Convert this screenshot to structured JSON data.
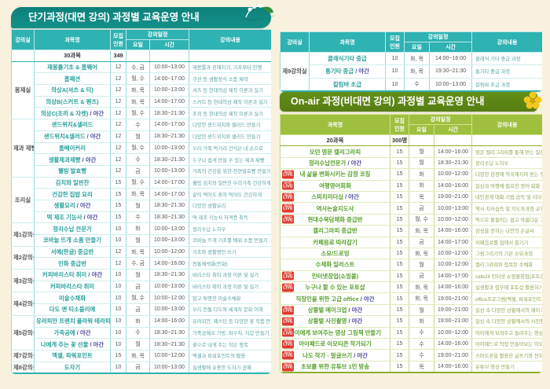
{
  "colors": {
    "background": "#f8f1dd",
    "teal_banner": "#0e807c",
    "teal_header": "#2fb2b2",
    "teal_subject": "#27a09a",
    "green_banner": "#5e8c17",
    "green_header": "#9fc03e",
    "green_subject": "#55a02a",
    "night_text": "#4c4c9e",
    "live_red": "#e23b2e"
  },
  "headers": {
    "room": "강의실",
    "subject": "과목명",
    "cap1": "모집",
    "cap2": "인원",
    "schedule": "강의일정",
    "day": "요일",
    "time": "시간",
    "content": "강의내용"
  },
  "night_suffix": " / 야간",
  "live_badge": {
    "line1": "실시간",
    "line2": "LIVE"
  },
  "left_table": {
    "title": "단기과정(대면 강의) 과정별 교육운영 안내",
    "summary": {
      "subject": "30과목",
      "capacity": "349"
    },
    "groups": [
      {
        "room": "봉제실",
        "rows": [
          {
            "subject": "재봉틀기초 & 홈웨어",
            "night": false,
            "capacity": "12",
            "day": "수, 금",
            "time": "10:00~13:00",
            "content": "재봉틀과 친해지기, 기초부터 진행"
          },
          {
            "subject": "홈패션",
            "night": false,
            "capacity": "12",
            "day": "월, 수",
            "time": "14:00~17:00",
            "content": "쿠션 등 생활장식 소품 제작"
          },
          {
            "subject": "의상A(셔츠 & 티)",
            "night": false,
            "capacity": "12",
            "day": "화, 목",
            "time": "10:00~13:00",
            "content": "셔츠 등 현대의상 제작 이론과 실기"
          },
          {
            "subject": "의상B(스커트 & 팬츠)",
            "night": false,
            "capacity": "12",
            "day": "화, 목",
            "time": "14:00~17:00",
            "content": "스커트 등 현대의상 제작 이론과 실기"
          },
          {
            "subject": "의상C(조끼 & 자켓)",
            "night": true,
            "capacity": "12",
            "day": "월, 수",
            "time": "18:30~21:30",
            "content": "조끼 등 현대의상 제작 이론과 실기"
          }
        ]
      },
      {
        "room": "제과 제빵실",
        "rows": [
          {
            "subject": "샌드위치&샐러드",
            "night": false,
            "capacity": "12",
            "day": "수",
            "time": "14:00~17:00",
            "content": "다양한 샌드위치와 샐러드 만들기"
          },
          {
            "subject": "샌드위치&샐러드",
            "night": true,
            "capacity": "12",
            "day": "월",
            "time": "18:30~21:30",
            "content": "다양한 샌드위치와 샐러드 만들기"
          },
          {
            "subject": "홈베이커리",
            "night": false,
            "capacity": "12",
            "day": "월, 수",
            "time": "10:00~13:00",
            "content": "우리 가족 먹거리 간식은 내 손으로"
          },
          {
            "subject": "생활제과제빵",
            "night": true,
            "capacity": "12",
            "day": "수",
            "time": "18:30~21:30",
            "content": "누구나 쉽게 만들 수 있는 제과 제빵"
          },
          {
            "subject": "웰빙 발효빵",
            "night": false,
            "capacity": "12",
            "day": "금",
            "time": "10:00~13:00",
            "content": "가족의 건강을 위한 천연발효빵 만들기"
          }
        ]
      },
      {
        "room": "조리실",
        "rows": [
          {
            "subject": "김치와 일반찬",
            "night": false,
            "capacity": "15",
            "day": "월, 수",
            "time": "14:00~17:00",
            "content": "웰빙 김치와 일반찬 우리가족 건강하게"
          },
          {
            "subject": "건강한 집밥 요리",
            "night": false,
            "capacity": "15",
            "day": "화, 목",
            "time": "14:00~17:00",
            "content": "같이 먹어도 혼자 먹어도 건강하게"
          },
          {
            "subject": "생활요리",
            "night": true,
            "capacity": "15",
            "day": "월",
            "time": "18:30~21:30",
            "content": "다양한 생활요리"
          },
          {
            "subject": "떡 제조 기능사",
            "night": true,
            "capacity": "15",
            "day": "수",
            "time": "18:30~21:30",
            "content": "떡 제조 기능사 자격증 취득"
          }
        ]
      },
      {
        "room": "제1강의실",
        "rows": [
          {
            "subject": "정리수납 전문가",
            "night": false,
            "capacity": "10",
            "day": "화",
            "time": "10:00~13:00",
            "content": "정리수납 노하우"
          },
          {
            "subject": "코바늘 뜨개 소품 만들기",
            "night": false,
            "capacity": "10",
            "day": "월",
            "time": "10:00~13:00",
            "content": "코바늘 뜨개 기초를 배워 소품 만들기"
          }
        ]
      },
      {
        "room": "제2강의실",
        "rows": [
          {
            "subject": "서예(한글) 중급반",
            "night": false,
            "capacity": "12",
            "day": "화, 목",
            "time": "10:00~12:00",
            "content": "기초와 생활명언 쓰기"
          },
          {
            "subject": "민화 중급반",
            "night": false,
            "capacity": "12",
            "day": "수, 금",
            "time": "14:00~16:00",
            "content": "전통채색화(민화)"
          }
        ]
      },
      {
        "room": "제3강의실",
        "rows": [
          {
            "subject": "커피바리스타 취미",
            "night": true,
            "capacity": "10",
            "day": "월",
            "time": "18:30~21:30",
            "content": "바리스타 취미 과정 이론 및 실기"
          },
          {
            "subject": "커피바리스타 취미",
            "night": false,
            "capacity": "10",
            "day": "금",
            "time": "10:00~13:00",
            "content": "바리스타 취미 과정 이론 및 실기"
          }
        ]
      },
      {
        "room": "제4강의실",
        "rows": [
          {
            "subject": "미술수채화",
            "night": false,
            "capacity": "10",
            "day": "월, 수",
            "time": "10:00~12:00",
            "content": "맑고 투명한 미술수채화"
          },
          {
            "subject": "다도 앤 티소믈리에",
            "night": false,
            "capacity": "10",
            "day": "금",
            "time": "10:00~13:00",
            "content": "우리 전통 다도와 세계차 문화 이해"
          }
        ]
      },
      {
        "room": "제5강의실",
        "rows": [
          {
            "subject": "유러피안 프렌치 플라워 테라피",
            "night": false,
            "capacity": "10",
            "day": "화",
            "time": "14:00~16:00",
            "content": "유러피안, 웨스턴 등 다양한 꽃 작품 만들기"
          },
          {
            "subject": "가죽공예",
            "night": true,
            "capacity": "10",
            "day": "수",
            "time": "18:30~21:30",
            "content": "가죽공예로 가방, 파우치, 지갑 만들기"
          },
          {
            "subject": "나에게 주는 꽃 선물",
            "night": true,
            "capacity": "10",
            "day": "월",
            "time": "18:30~21:30",
            "content": "꽃으로 내게 주는 작은 행복"
          }
        ]
      },
      {
        "room": "제7강의실",
        "rows": [
          {
            "subject": "엑셀, 파워포인트",
            "night": false,
            "capacity": "15",
            "day": "화, 목",
            "time": "10:00~12:00",
            "content": "엑셀과 파워포인트의 활용"
          }
        ]
      },
      {
        "room": "제8강의실",
        "rows": [
          {
            "subject": "도자기",
            "night": false,
            "capacity": "10",
            "day": "금",
            "time": "10:00~13:00",
            "content": "실생활에 유용한 도자기 공예"
          }
        ]
      }
    ]
  },
  "right_table": {
    "groups": [
      {
        "room": "제9강의실",
        "rows": [
          {
            "subject": "클래식기타 중급",
            "night": false,
            "capacity": "10",
            "day": "화, 목",
            "time": "14:00~16:00",
            "content": "클래식 기타 중급 과정"
          },
          {
            "subject": "통기타 중급",
            "night": true,
            "capacity": "10",
            "day": "화, 목",
            "time": "19:30~21:30",
            "content": "통기타 중급 과정"
          },
          {
            "subject": "칼림바 초급",
            "night": false,
            "capacity": "10",
            "day": "수",
            "time": "10:00~13:00",
            "content": "칼림바 초급 과정"
          }
        ]
      }
    ]
  },
  "onair_table": {
    "title": "On-air 과정(비대면 강의) 과정별 교육운영 안내",
    "summary": {
      "subject": "20과목",
      "capacity": "300명"
    },
    "rows": [
      {
        "live": false,
        "subject": "모던 영문 캘리그라피",
        "night": false,
        "capacity": "15",
        "day": "월",
        "time": "14:00~16:00",
        "content": "영문 캘리그라피를 통해 얻는 일상"
      },
      {
        "live": false,
        "subject": "정리수납전문가",
        "night": true,
        "capacity": "15",
        "day": "월",
        "time": "18:30~21:30",
        "content": "정리수납 노하우"
      },
      {
        "live": true,
        "subject": "내 삶을 변화시키는 감정 코칭",
        "night": false,
        "capacity": "15",
        "day": "화",
        "time": "10:00~12:00",
        "content": "다양한 감정에 익숙해지며 얻는 행복"
      },
      {
        "live": true,
        "subject": "여행영어회화",
        "night": false,
        "capacity": "15",
        "day": "화",
        "time": "14:00~16:00",
        "content": "일상과 여행에 필요한 영어 회화"
      },
      {
        "live": true,
        "subject": "스피치리더십",
        "night": true,
        "capacity": "15",
        "day": "목",
        "time": "19:00~21:00",
        "content": "대인관계 대화 기법 습득 및 리더십 향상"
      },
      {
        "live": true,
        "subject": "역사논술지도사",
        "night": false,
        "capacity": "15",
        "day": "금",
        "time": "10:00~13:00",
        "content": "역사 지식습득 및 지도자과정 교육"
      },
      {
        "live": true,
        "subject": "현대수묵담채화 중급반",
        "night": false,
        "capacity": "15",
        "day": "월, 수",
        "time": "10:00~12:00",
        "content": "먹으로 물들이는 쉽고 아름다운 그림"
      },
      {
        "live": false,
        "subject": "캘리그라피 중급반",
        "night": false,
        "capacity": "15",
        "day": "화, 목",
        "time": "14:00~16:00",
        "content": "감성을 전하는 나만의 손글씨"
      },
      {
        "live": false,
        "subject": "카페음료 따라잡기",
        "night": false,
        "capacity": "15",
        "day": "금",
        "time": "14:00~17:00",
        "content": "카페음료를 집에서 즐기기"
      },
      {
        "live": false,
        "subject": "소묘/드로잉",
        "night": false,
        "capacity": "15",
        "day": "화, 목",
        "time": "10:00~12:00",
        "content": "그림그리기의 기본 소묘과정"
      },
      {
        "live": false,
        "subject": "수채화 일러스트",
        "night": false,
        "capacity": "15",
        "day": "월",
        "time": "10:00~12:00",
        "content": "캘리그라피와 접목된 수채화"
      },
      {
        "live": true,
        "subject": "인터넷창업(쇼핑몰)",
        "night": false,
        "capacity": "15",
        "day": "금",
        "time": "14:00~17:00",
        "content": "cafe24 인터넷 쇼핑몰창업(포토샵가능자)"
      },
      {
        "live": true,
        "subject": "누구나 할 수 있는 포토샵",
        "night": false,
        "capacity": "15",
        "day": "화, 목",
        "time": "14:00~16:00",
        "content": "실생활과 업무에 포토샵 활용하기"
      },
      {
        "live": false,
        "subject": "직장인을 위한 고급 office",
        "night": true,
        "capacity": "15",
        "day": "화, 목",
        "time": "19:00~21:00",
        "content": "office프로그램(엑셀, 파워포인트, 워드) 응용과정"
      },
      {
        "live": true,
        "subject": "상황별 메이크업",
        "night": true,
        "capacity": "15",
        "day": "월",
        "time": "19:00~21:00",
        "content": "일상 속 다양한 상황에서의 메이크업"
      },
      {
        "live": true,
        "subject": "상황별 사진촬영",
        "night": true,
        "capacity": "15",
        "day": "화",
        "time": "19:00~21:00",
        "content": "일상 속 다양한 상황에서의 사진촬영"
      },
      {
        "live": true,
        "subject": "아이에게 보여주는 영상 그림책 만들기",
        "night": false,
        "capacity": "15",
        "day": "수",
        "time": "10:00~12:00",
        "content": "아이에게 보여주고 들려주는 영상 그림책 만들기"
      },
      {
        "live": true,
        "subject": "아이패드로 이모티콘 작가되기",
        "night": false,
        "capacity": "15",
        "day": "수",
        "time": "14:00~16:00",
        "content": "아이패드로 직접 만들어보는 이모티콘 작가되기"
      },
      {
        "live": true,
        "subject": "나도 작가 - 말글쓰기",
        "night": true,
        "capacity": "15",
        "day": "수",
        "time": "19:00~21:00",
        "content": "스마트폰을 활용한 글쓰기와 전자책 출판"
      },
      {
        "live": true,
        "subject": "초보를 위한 유튜브 1인 방송",
        "night": false,
        "capacity": "15",
        "day": "목",
        "time": "14:00~16:00",
        "content": "유튜브 영상 만들기"
      }
    ]
  }
}
